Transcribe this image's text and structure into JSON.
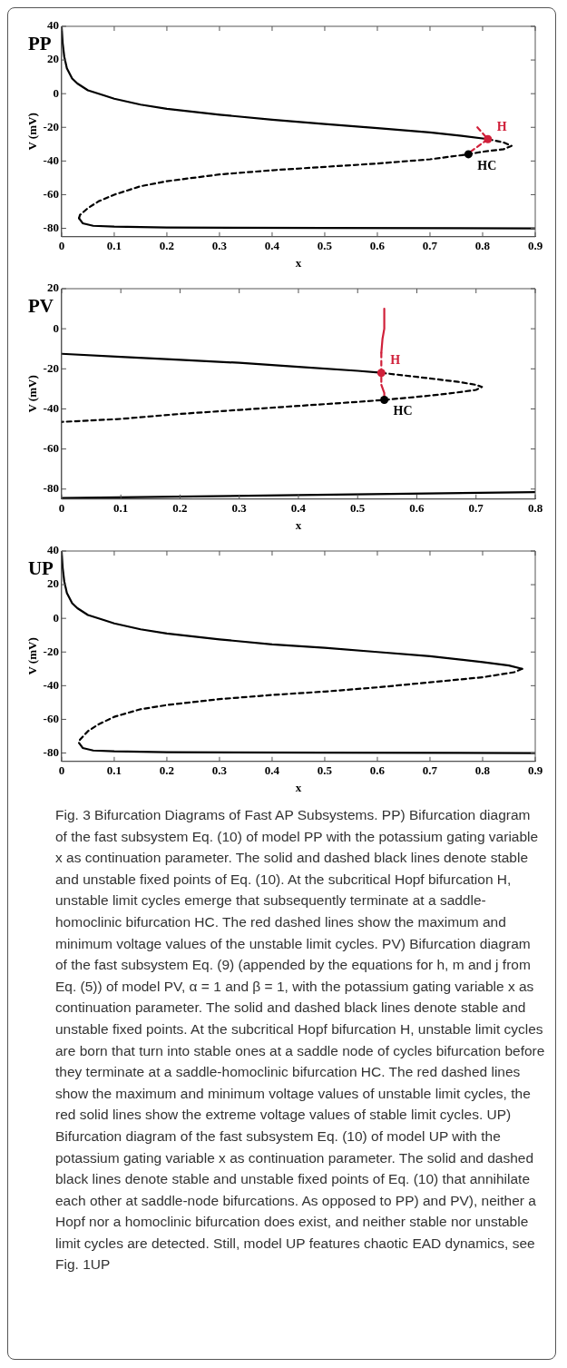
{
  "chart_data": [
    {
      "type": "line",
      "title": "PP",
      "xlabel": "x",
      "ylabel": "V (mV)",
      "xlim": [
        0,
        0.9
      ],
      "ylim": [
        -85,
        40
      ],
      "xticks": [
        0,
        0.1,
        0.2,
        0.3,
        0.4,
        0.5,
        0.6,
        0.7,
        0.8,
        0.9
      ],
      "yticks": [
        -80,
        -60,
        -40,
        -20,
        0,
        20,
        40
      ],
      "grid": false,
      "legend": false,
      "series": [
        {
          "color": "#000000",
          "line_style": "solid",
          "x": [
            0,
            0.002,
            0.005,
            0.01,
            0.02,
            0.03,
            0.05,
            0.08,
            0.1,
            0.15,
            0.2,
            0.3,
            0.4,
            0.5,
            0.6,
            0.7,
            0.76,
            0.81
          ],
          "values": [
            40,
            30,
            22,
            15,
            9,
            6,
            2,
            -1,
            -3,
            -6.5,
            -9,
            -12.5,
            -15.5,
            -18,
            -20.5,
            -23,
            -25,
            -27
          ]
        },
        {
          "color": "#000000",
          "line_style": "dashed",
          "x": [
            0.81,
            0.84,
            0.855,
            0.84,
            0.8,
            0.773,
            0.7,
            0.6,
            0.5,
            0.4,
            0.3,
            0.2,
            0.15,
            0.1,
            0.07,
            0.05,
            0.035,
            0.033
          ],
          "values": [
            -27,
            -29,
            -31,
            -33,
            -34.5,
            -36,
            -39,
            -41.5,
            -43.5,
            -45.5,
            -48,
            -52,
            -55,
            -60,
            -64,
            -68,
            -72,
            -74
          ]
        },
        {
          "color": "#000000",
          "line_style": "solid",
          "x": [
            0.033,
            0.04,
            0.06,
            0.1,
            0.2,
            0.5,
            0.9
          ],
          "values": [
            -74,
            -77,
            -78.5,
            -79,
            -79.5,
            -79.8,
            -80
          ]
        },
        {
          "color": "#d0203a",
          "line_style": "dashed",
          "x": [
            0.79,
            0.81,
            0.775
          ],
          "values": [
            -20,
            -27,
            -35
          ]
        },
        {
          "type": "scatter",
          "color": "#d0203a",
          "marker": "circle",
          "x": [
            0.81
          ],
          "values": [
            -27
          ]
        },
        {
          "type": "scatter",
          "color": "#000000",
          "marker": "circle",
          "x": [
            0.773
          ],
          "values": [
            -36
          ]
        }
      ],
      "annotations": [
        {
          "text": "H",
          "x": 0.81,
          "y": -27
        },
        {
          "text": "HC",
          "x": 0.773,
          "y": -36
        }
      ]
    },
    {
      "type": "line",
      "title": "PV",
      "xlabel": "x",
      "ylabel": "V (mV)",
      "xlim": [
        0,
        0.8
      ],
      "ylim": [
        -85,
        20
      ],
      "xticks": [
        0,
        0.1,
        0.2,
        0.3,
        0.4,
        0.5,
        0.6,
        0.7,
        0.8
      ],
      "yticks": [
        -80,
        -60,
        -40,
        -20,
        0,
        20
      ],
      "grid": false,
      "legend": false,
      "series": [
        {
          "color": "#000000",
          "line_style": "solid",
          "x": [
            0,
            0.1,
            0.2,
            0.3,
            0.4,
            0.5,
            0.54
          ],
          "values": [
            -12.5,
            -14,
            -15.5,
            -17,
            -19,
            -21,
            -22
          ]
        },
        {
          "color": "#000000",
          "line_style": "dashed",
          "x": [
            0.54,
            0.6,
            0.67,
            0.7,
            0.71,
            0.7,
            0.65,
            0.6,
            0.545,
            0.5,
            0.4,
            0.3,
            0.2,
            0.1,
            0
          ],
          "values": [
            -22,
            -24,
            -26.5,
            -28,
            -29,
            -30.5,
            -32.5,
            -34,
            -35.5,
            -36.5,
            -38.5,
            -40.5,
            -42.5,
            -45,
            -46.5
          ]
        },
        {
          "color": "#000000",
          "line_style": "solid",
          "x": [
            0,
            0.4,
            0.8
          ],
          "values": [
            -84.5,
            -83,
            -81.5
          ]
        },
        {
          "color": "#d0203a",
          "line_style": "solid",
          "x": [
            0.545,
            0.545,
            0.542,
            0.54
          ],
          "values": [
            10,
            0,
            -5,
            -12
          ]
        },
        {
          "color": "#d0203a",
          "line_style": "dashed",
          "x": [
            0.54,
            0.54,
            0.54
          ],
          "values": [
            -12,
            -22,
            -28
          ]
        },
        {
          "color": "#d0203a",
          "line_style": "solid",
          "x": [
            0.54,
            0.545,
            0.545
          ],
          "values": [
            -28,
            -32,
            -35.5
          ]
        },
        {
          "type": "scatter",
          "color": "#d0203a",
          "marker": "circle",
          "x": [
            0.54
          ],
          "values": [
            -22
          ]
        },
        {
          "type": "scatter",
          "color": "#000000",
          "marker": "circle",
          "x": [
            0.545
          ],
          "values": [
            -35.5
          ]
        }
      ],
      "annotations": [
        {
          "text": "H",
          "x": 0.54,
          "y": -22
        },
        {
          "text": "HC",
          "x": 0.545,
          "y": -35.5
        }
      ]
    },
    {
      "type": "line",
      "title": "UP",
      "xlabel": "x",
      "ylabel": "V (mV)",
      "xlim": [
        0,
        0.9
      ],
      "ylim": [
        -85,
        40
      ],
      "xticks": [
        0,
        0.1,
        0.2,
        0.3,
        0.4,
        0.5,
        0.6,
        0.7,
        0.8,
        0.9
      ],
      "yticks": [
        -80,
        -60,
        -40,
        -20,
        0,
        20,
        40
      ],
      "grid": false,
      "legend": false,
      "series": [
        {
          "color": "#000000",
          "line_style": "solid",
          "x": [
            0,
            0.002,
            0.005,
            0.01,
            0.02,
            0.03,
            0.05,
            0.08,
            0.1,
            0.15,
            0.2,
            0.3,
            0.4,
            0.5,
            0.6,
            0.7,
            0.8,
            0.85,
            0.875
          ],
          "values": [
            40,
            30,
            22,
            15,
            9,
            6,
            2,
            -1,
            -3,
            -6.5,
            -9,
            -12.5,
            -15.5,
            -17.5,
            -20,
            -22.5,
            -26,
            -28,
            -30
          ]
        },
        {
          "color": "#000000",
          "line_style": "dashed",
          "x": [
            0.875,
            0.86,
            0.8,
            0.7,
            0.6,
            0.5,
            0.4,
            0.3,
            0.2,
            0.15,
            0.1,
            0.07,
            0.05,
            0.035,
            0.033
          ],
          "values": [
            -30,
            -32,
            -35,
            -38,
            -41,
            -43.5,
            -45.5,
            -48,
            -51.5,
            -54,
            -58.5,
            -63,
            -67,
            -72,
            -74
          ]
        },
        {
          "color": "#000000",
          "line_style": "solid",
          "x": [
            0.033,
            0.04,
            0.06,
            0.1,
            0.2,
            0.5,
            0.9
          ],
          "values": [
            -74,
            -77,
            -78.5,
            -79,
            -79.5,
            -79.8,
            -80
          ]
        }
      ],
      "annotations": [
        "Fig. 3 Bifurcation Diagrams of Fast AP Subsystems. PP) Bifurcation diagram of the fast subsystem Eq. (10) of model PP with the potassium gating variable x as continuation parameter. The solid and dashed black lines denote stable and unstable fixed points of Eq. (10). At the subcritical Hopf bifurcation H, unstable limit cycles emerge that subsequently terminate at a saddle-homoclinic bifurcation HC. The red dashed lines show the maximum and minimum voltage values of the unstable limit cycles. PV) Bifurcation diagram of the fast subsystem Eq. (9) (appended by the equations for h, m and j from Eq. (5)) of model PV, α = 1 and β = 1, with the potassium gating variable x as continuation parameter. The solid and dashed black lines denote stable and unstable fixed points. At the subcritical Hopf bifurcation H, unstable limit cycles are born that turn into stable ones at a saddle node of cycles bifurcation before they terminate at a saddle-homoclinic bifurcation HC. The red dashed lines show the maximum and minimum voltage values of unstable limit cycles, the red solid lines show the extreme voltage values of stable limit cycles. UP) Bifurcation diagram of the fast subsystem Eq. (10) of model UP with the potassium gating variable x as continuation parameter. The solid and dashed black lines denote stable and unstable fixed points of Eq. (10) that annihilate each other at saddle-node bifurcations. As opposed to PP) and PV), neither a Hopf nor a homoclinic bifurcation does exist, and neither stable nor unstable limit cycles are detected. Still, model UP features chaotic EAD dynamics, see Fig. 1UP"
      ]
    }
  ]
}
